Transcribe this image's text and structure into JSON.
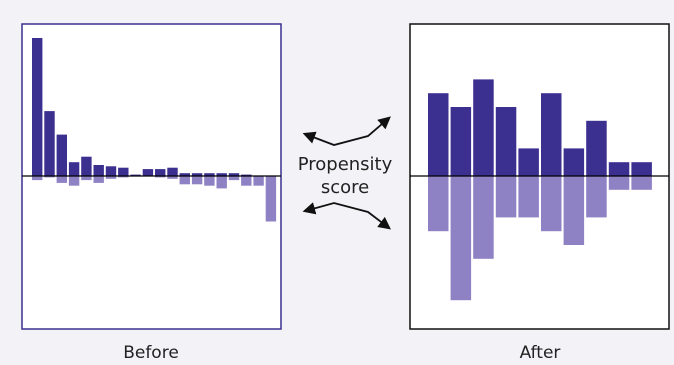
{
  "figure": {
    "center_label_line1": "Propensity",
    "center_label_line2": "score",
    "colors": {
      "positive": "#3b2f8f",
      "negative": "#8e82c4",
      "before_frame": "#3b2f8f",
      "after_frame": "#111111",
      "arrow": "#111111"
    }
  },
  "chart_data": [
    {
      "type": "bar",
      "panel": "before",
      "title": "Before",
      "ylim": [
        -14,
        14
      ],
      "series": [
        {
          "values": [
            10.0,
            4.7,
            3.0,
            1.0,
            1.4,
            0.8,
            0.7,
            0.6,
            0.1,
            0.5,
            0.5,
            0.6,
            0.2,
            0.2,
            0.2,
            0.2,
            0.2,
            0.1,
            0.0,
            0.0
          ]
        },
        {
          "values": [
            -0.3,
            -0.1,
            -0.5,
            -0.7,
            -0.3,
            -0.5,
            -0.2,
            -0.1,
            0.0,
            0.0,
            -0.1,
            -0.2,
            -0.6,
            -0.6,
            -0.7,
            -0.9,
            -0.3,
            -0.7,
            -0.7,
            -3.3
          ]
        }
      ]
    },
    {
      "type": "bar",
      "panel": "after",
      "title": "After",
      "ylim": [
        -14,
        14
      ],
      "series": [
        {
          "values": [
            6.0,
            5.0,
            7.0,
            5.0,
            2.0,
            6.0,
            2.0,
            4.0,
            1.0,
            1.0
          ]
        },
        {
          "values": [
            -4.0,
            -9.0,
            -6.0,
            -3.0,
            -3.0,
            -4.0,
            -5.0,
            -3.0,
            -1.0,
            -1.0
          ]
        }
      ]
    }
  ]
}
